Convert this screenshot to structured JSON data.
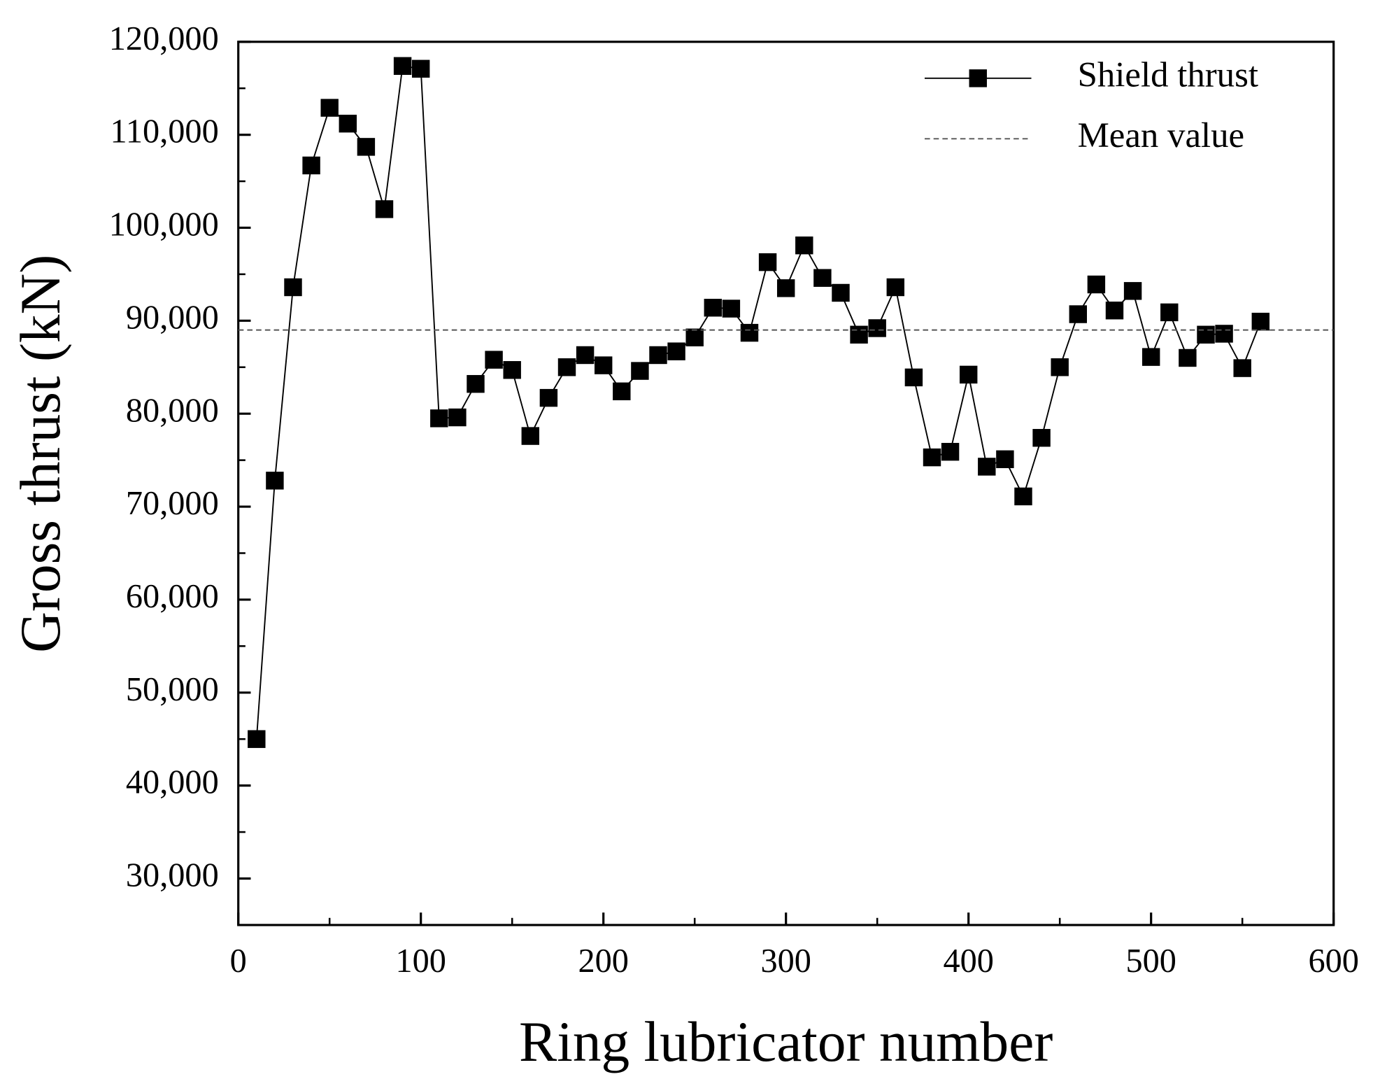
{
  "chart_data": {
    "type": "line",
    "xlabel": "Ring lubricator number",
    "ylabel": "Gross thrust (kN)",
    "xlim": [
      0,
      600
    ],
    "xticks": [
      0,
      100,
      200,
      300,
      400,
      500,
      600
    ],
    "ylim": [
      25000,
      120000
    ],
    "yticks": [
      {
        "value": 30000,
        "label": "30,000"
      },
      {
        "value": 40000,
        "label": "40,000"
      },
      {
        "value": 50000,
        "label": "50,000"
      },
      {
        "value": 60000,
        "label": "60,000"
      },
      {
        "value": 70000,
        "label": "70,000"
      },
      {
        "value": 80000,
        "label": "80,000"
      },
      {
        "value": 90000,
        "label": "90,000"
      },
      {
        "value": 100000,
        "label": "100,000"
      },
      {
        "value": 110000,
        "label": "110,000"
      },
      {
        "value": 120000,
        "label": "120,000"
      }
    ],
    "legend": "upper right",
    "x": [
      10,
      20,
      30,
      40,
      50,
      60,
      70,
      80,
      90,
      100,
      110,
      120,
      130,
      140,
      150,
      160,
      170,
      180,
      190,
      200,
      210,
      220,
      230,
      240,
      250,
      260,
      270,
      280,
      290,
      300,
      310,
      320,
      330,
      340,
      350,
      360,
      370,
      380,
      390,
      400,
      410,
      420,
      430,
      440,
      450,
      460,
      470,
      480,
      490,
      500,
      510,
      520,
      530,
      540,
      550,
      560
    ],
    "series": [
      {
        "name": "Shield thrust",
        "color": "#000000",
        "marker": "square",
        "values": [
          45000,
          72800,
          93600,
          106700,
          112900,
          111200,
          108700,
          102000,
          117400,
          117100,
          79500,
          79600,
          83200,
          85800,
          84700,
          77600,
          81700,
          85000,
          86300,
          85200,
          82400,
          84600,
          86300,
          86700,
          88200,
          91400,
          91300,
          88700,
          96300,
          93500,
          98100,
          94600,
          93000,
          88500,
          89200,
          93600,
          83900,
          75300,
          75900,
          84200,
          74300,
          75100,
          71100,
          77400,
          85000,
          90700,
          93900,
          91100,
          93200,
          86100,
          90900,
          86000,
          88500,
          88600,
          84900,
          89900
        ]
      },
      {
        "name": "Mean value",
        "color": "#555555",
        "dashed": true,
        "value": 89000
      }
    ]
  }
}
